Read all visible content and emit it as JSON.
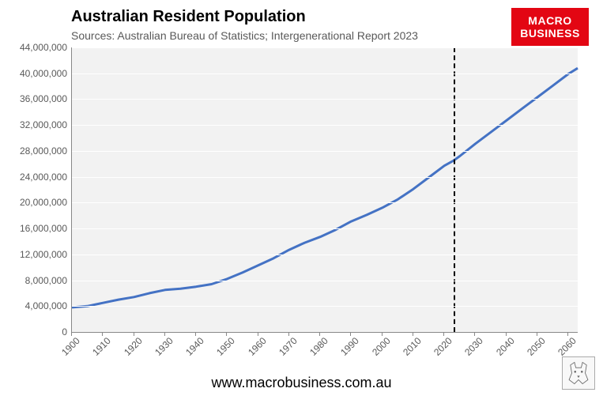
{
  "chart": {
    "type": "line",
    "title": "Australian Resident Population",
    "title_fontsize": 20,
    "title_color": "#000000",
    "subtitle": "Sources: Australian Bureau of Statistics; Intergenerational Report 2023",
    "subtitle_fontsize": 14,
    "subtitle_color": "#595959",
    "background_color": "#ffffff",
    "plot_background_color": "#f2f2f2",
    "grid_color": "#ffffff",
    "axis_color": "#888888",
    "line_color": "#4472c4",
    "line_width": 3,
    "dash_line_x": 2023,
    "dash_line_color": "#000000",
    "xlim": [
      1900,
      2063
    ],
    "ylim": [
      0,
      44000000
    ],
    "ytick_step": 4000000,
    "xtick_step": 10,
    "yticks": [
      0,
      4000000,
      8000000,
      12000000,
      16000000,
      20000000,
      24000000,
      28000000,
      32000000,
      36000000,
      40000000,
      44000000
    ],
    "ytick_labels": [
      "0",
      "4,000,000",
      "8,000,000",
      "12,000,000",
      "16,000,000",
      "20,000,000",
      "24,000,000",
      "28,000,000",
      "32,000,000",
      "36,000,000",
      "40,000,000",
      "44,000,000"
    ],
    "xticks": [
      1900,
      1910,
      1920,
      1930,
      1940,
      1950,
      1960,
      1970,
      1980,
      1990,
      2000,
      2010,
      2020,
      2030,
      2040,
      2050,
      2060
    ],
    "xtick_labels": [
      "1900",
      "1910",
      "1920",
      "1930",
      "1940",
      "1950",
      "1960",
      "1970",
      "1980",
      "1990",
      "2000",
      "2010",
      "2020",
      "2030",
      "2040",
      "2050",
      "2060"
    ],
    "label_fontsize": 12,
    "label_color": "#595959",
    "series": [
      {
        "x": 1900,
        "y": 3800000
      },
      {
        "x": 1905,
        "y": 4000000
      },
      {
        "x": 1910,
        "y": 4500000
      },
      {
        "x": 1915,
        "y": 5000000
      },
      {
        "x": 1920,
        "y": 5400000
      },
      {
        "x": 1925,
        "y": 6000000
      },
      {
        "x": 1930,
        "y": 6500000
      },
      {
        "x": 1935,
        "y": 6700000
      },
      {
        "x": 1940,
        "y": 7000000
      },
      {
        "x": 1945,
        "y": 7400000
      },
      {
        "x": 1950,
        "y": 8200000
      },
      {
        "x": 1955,
        "y": 9200000
      },
      {
        "x": 1960,
        "y": 10300000
      },
      {
        "x": 1965,
        "y": 11400000
      },
      {
        "x": 1970,
        "y": 12700000
      },
      {
        "x": 1975,
        "y": 13800000
      },
      {
        "x": 1980,
        "y": 14700000
      },
      {
        "x": 1985,
        "y": 15800000
      },
      {
        "x": 1990,
        "y": 17100000
      },
      {
        "x": 1995,
        "y": 18100000
      },
      {
        "x": 2000,
        "y": 19200000
      },
      {
        "x": 2005,
        "y": 20500000
      },
      {
        "x": 2010,
        "y": 22100000
      },
      {
        "x": 2015,
        "y": 23900000
      },
      {
        "x": 2020,
        "y": 25700000
      },
      {
        "x": 2023,
        "y": 26500000
      },
      {
        "x": 2025,
        "y": 27200000
      },
      {
        "x": 2030,
        "y": 29100000
      },
      {
        "x": 2035,
        "y": 30900000
      },
      {
        "x": 2040,
        "y": 32700000
      },
      {
        "x": 2045,
        "y": 34500000
      },
      {
        "x": 2050,
        "y": 36300000
      },
      {
        "x": 2055,
        "y": 38100000
      },
      {
        "x": 2060,
        "y": 39900000
      },
      {
        "x": 2063,
        "y": 40800000
      }
    ]
  },
  "logo": {
    "line1": "MACRO",
    "line2": "BUSINESS",
    "bg_color": "#e30613",
    "text_color": "#ffffff"
  },
  "url": "www.macrobusiness.com.au",
  "wolf_icon": "wolf-icon"
}
